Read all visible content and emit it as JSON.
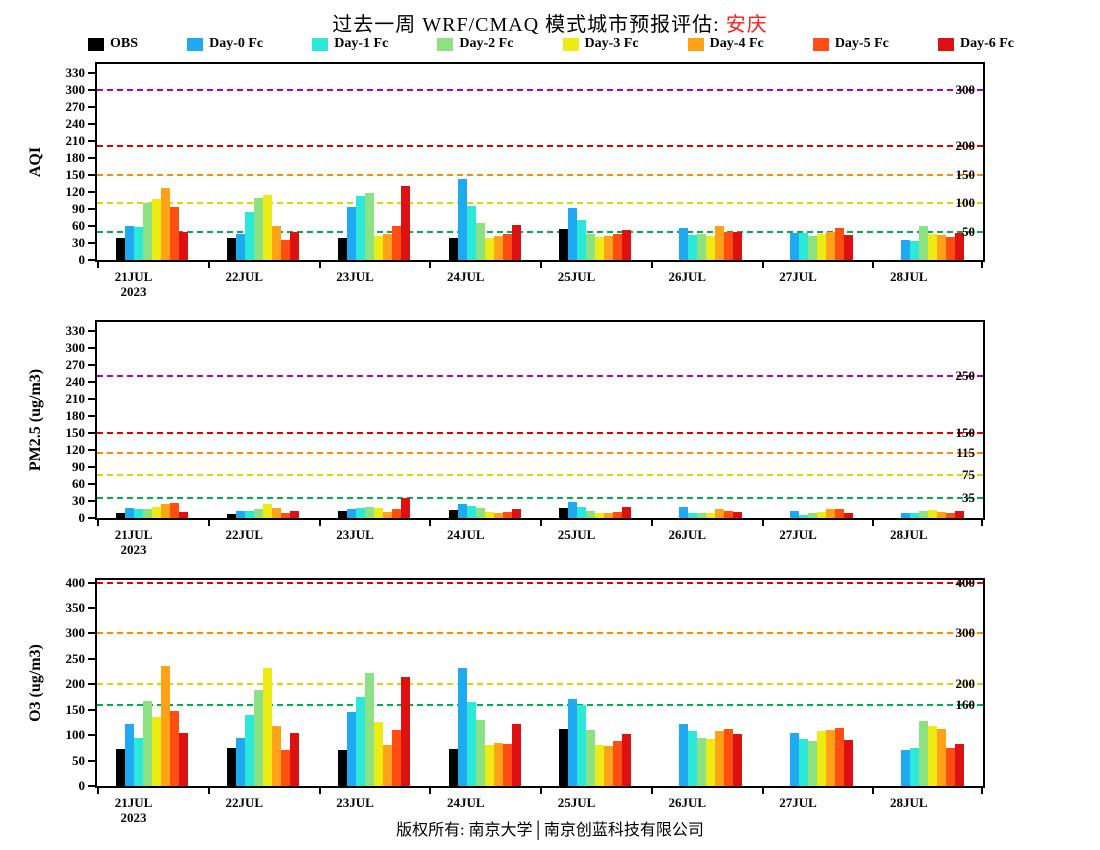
{
  "title": {
    "prefix": "过去一周 WRF/CMAQ 模式城市预报评估: ",
    "city": "安庆"
  },
  "footer": "版权所有: 南京大学│南京创蓝科技有限公司",
  "legend": [
    {
      "label": "OBS",
      "color": "#000000"
    },
    {
      "label": "Day-0 Fc",
      "color": "#1FA9F0"
    },
    {
      "label": "Day-1 Fc",
      "color": "#2BE8D9"
    },
    {
      "label": "Day-2 Fc",
      "color": "#8CE182"
    },
    {
      "label": "Day-3 Fc",
      "color": "#ECEC14"
    },
    {
      "label": "Day-4 Fc",
      "color": "#FFA217"
    },
    {
      "label": "Day-5 Fc",
      "color": "#FF4E11"
    },
    {
      "label": "Day-6 Fc",
      "color": "#DD1111"
    }
  ],
  "chart_data": [
    {
      "type": "bar",
      "title": "AQI panel",
      "ylabel": "AQI",
      "xlabel": "",
      "ylim": [
        0,
        345
      ],
      "yticks": [
        0,
        30,
        60,
        90,
        120,
        150,
        180,
        210,
        240,
        270,
        300,
        330
      ],
      "grid": false,
      "legend_position": "top",
      "categories": [
        "21JUL",
        "22JUL",
        "23JUL",
        "24JUL",
        "25JUL",
        "26JUL",
        "27JUL",
        "28JUL"
      ],
      "year_label": "2023",
      "reference_lines": [
        {
          "value": 50,
          "color": "#00B050",
          "label": "50"
        },
        {
          "value": 100,
          "color": "#D8D800",
          "label": "100"
        },
        {
          "value": 150,
          "color": "#FF8C00",
          "label": "150"
        },
        {
          "value": 200,
          "color": "#E00000",
          "label": "200"
        },
        {
          "value": 300,
          "color": "#B000B0",
          "label": "300"
        }
      ],
      "series": [
        {
          "name": "OBS",
          "values": [
            38,
            38,
            38,
            38,
            55,
            null,
            null,
            null
          ]
        },
        {
          "name": "Day-0 Fc",
          "values": [
            60,
            45,
            93,
            142,
            92,
            57,
            48,
            35
          ]
        },
        {
          "name": "Day-1 Fc",
          "values": [
            58,
            85,
            113,
            95,
            70,
            44,
            47,
            34
          ]
        },
        {
          "name": "Day-2 Fc",
          "values": [
            100,
            110,
            118,
            65,
            45,
            45,
            42,
            60
          ]
        },
        {
          "name": "Day-3 Fc",
          "values": [
            107,
            115,
            42,
            38,
            40,
            42,
            46,
            46
          ]
        },
        {
          "name": "Day-4 Fc",
          "values": [
            127,
            60,
            45,
            42,
            42,
            60,
            50,
            44
          ]
        },
        {
          "name": "Day-5 Fc",
          "values": [
            93,
            35,
            60,
            45,
            45,
            50,
            57,
            40
          ]
        },
        {
          "name": "Day-6 Fc",
          "values": [
            50,
            50,
            130,
            62,
            52,
            50,
            44,
            48
          ]
        }
      ]
    },
    {
      "type": "bar",
      "title": "PM2.5 panel",
      "ylabel": "PM2.5 (ug/m3)",
      "xlabel": "",
      "ylim": [
        0,
        345
      ],
      "yticks": [
        0,
        30,
        60,
        90,
        120,
        150,
        180,
        210,
        240,
        270,
        300,
        330
      ],
      "grid": false,
      "legend_position": "top",
      "categories": [
        "21JUL",
        "22JUL",
        "23JUL",
        "24JUL",
        "25JUL",
        "26JUL",
        "27JUL",
        "28JUL"
      ],
      "year_label": "2023",
      "reference_lines": [
        {
          "value": 35,
          "color": "#00B050",
          "label": "35"
        },
        {
          "value": 75,
          "color": "#D8D800",
          "label": "75"
        },
        {
          "value": 115,
          "color": "#FF8C00",
          "label": "115"
        },
        {
          "value": 150,
          "color": "#E00000",
          "label": "150"
        },
        {
          "value": 250,
          "color": "#B000B0",
          "label": "250"
        }
      ],
      "series": [
        {
          "name": "OBS",
          "values": [
            8,
            7,
            12,
            14,
            18,
            null,
            null,
            null
          ]
        },
        {
          "name": "Day-0 Fc",
          "values": [
            18,
            12,
            15,
            25,
            28,
            20,
            12,
            8
          ]
        },
        {
          "name": "Day-1 Fc",
          "values": [
            15,
            13,
            18,
            22,
            20,
            8,
            5,
            8
          ]
        },
        {
          "name": "Day-2 Fc",
          "values": [
            16,
            15,
            20,
            18,
            12,
            8,
            8,
            12
          ]
        },
        {
          "name": "Day-3 Fc",
          "values": [
            20,
            25,
            18,
            10,
            8,
            8,
            10,
            14
          ]
        },
        {
          "name": "Day-4 Fc",
          "values": [
            25,
            18,
            10,
            8,
            8,
            15,
            15,
            10
          ]
        },
        {
          "name": "Day-5 Fc",
          "values": [
            27,
            8,
            15,
            10,
            10,
            12,
            16,
            8
          ]
        },
        {
          "name": "Day-6 Fc",
          "values": [
            10,
            12,
            35,
            15,
            20,
            10,
            8,
            12
          ]
        }
      ]
    },
    {
      "type": "bar",
      "title": "O3 panel",
      "ylabel": "O3 (ug/m3)",
      "xlabel": "",
      "ylim": [
        0,
        405
      ],
      "yticks": [
        0,
        50,
        100,
        150,
        200,
        250,
        300,
        350,
        400
      ],
      "grid": false,
      "legend_position": "top",
      "categories": [
        "21JUL",
        "22JUL",
        "23JUL",
        "24JUL",
        "25JUL",
        "26JUL",
        "27JUL",
        "28JUL"
      ],
      "year_label": "2023",
      "reference_lines": [
        {
          "value": 160,
          "color": "#00B050",
          "label": "160"
        },
        {
          "value": 200,
          "color": "#D8D800",
          "label": "200"
        },
        {
          "value": 300,
          "color": "#FF8C00",
          "label": "300"
        },
        {
          "value": 400,
          "color": "#E00000",
          "label": "400"
        }
      ],
      "series": [
        {
          "name": "OBS",
          "values": [
            72,
            75,
            70,
            72,
            112,
            null,
            null,
            null
          ]
        },
        {
          "name": "Day-0 Fc",
          "values": [
            122,
            95,
            145,
            232,
            172,
            122,
            105,
            70
          ]
        },
        {
          "name": "Day-1 Fc",
          "values": [
            95,
            140,
            175,
            165,
            160,
            108,
            92,
            75
          ]
        },
        {
          "name": "Day-2 Fc",
          "values": [
            168,
            188,
            222,
            130,
            110,
            95,
            88,
            128
          ]
        },
        {
          "name": "Day-3 Fc",
          "values": [
            135,
            232,
            125,
            80,
            80,
            92,
            108,
            118
          ]
        },
        {
          "name": "Day-4 Fc",
          "values": [
            235,
            118,
            80,
            85,
            78,
            108,
            110,
            112
          ]
        },
        {
          "name": "Day-5 Fc",
          "values": [
            148,
            70,
            110,
            82,
            88,
            112,
            115,
            75
          ]
        },
        {
          "name": "Day-6 Fc",
          "values": [
            105,
            105,
            215,
            122,
            102,
            103,
            90,
            82
          ]
        }
      ]
    }
  ]
}
